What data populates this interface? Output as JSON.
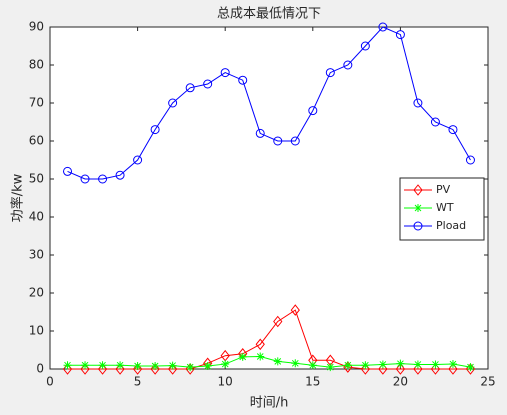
{
  "chart_data": {
    "type": "line",
    "title": "总成本最低情况下",
    "xlabel": "时间/h",
    "ylabel": "功率/kw",
    "x": [
      1,
      2,
      3,
      4,
      5,
      6,
      7,
      8,
      9,
      10,
      11,
      12,
      13,
      14,
      15,
      16,
      17,
      18,
      19,
      20,
      21,
      22,
      23,
      24
    ],
    "series": [
      {
        "name": "PV",
        "color": "#ff0000",
        "marker": "diamond",
        "values": [
          0,
          0,
          0,
          0,
          0,
          0,
          0,
          0,
          1.5,
          3.5,
          4,
          6.5,
          12.5,
          15.5,
          2.3,
          2.3,
          0.5,
          0,
          0,
          0,
          0,
          0,
          0,
          0
        ]
      },
      {
        "name": "WT",
        "color": "#00ff00",
        "marker": "asterisk",
        "values": [
          1,
          1,
          1,
          1,
          0.8,
          0.8,
          0.9,
          0.5,
          0.8,
          1.3,
          3.2,
          3.3,
          2,
          1.5,
          1,
          0.5,
          1,
          1,
          1.2,
          1.4,
          1.2,
          1.2,
          1.3,
          0.5
        ]
      },
      {
        "name": "Pload",
        "color": "#0000ff",
        "marker": "circle",
        "values": [
          52,
          50,
          50,
          51,
          55,
          63,
          70,
          74,
          75,
          78,
          76,
          62,
          60,
          60,
          68,
          78,
          80,
          85,
          90,
          88,
          70,
          65,
          63,
          55
        ]
      }
    ],
    "xlim": [
      0,
      25
    ],
    "xticks": [
      0,
      5,
      10,
      15,
      20,
      25
    ],
    "ylim": [
      0,
      90
    ],
    "yticks": [
      0,
      10,
      20,
      30,
      40,
      50,
      60,
      70,
      80,
      90
    ],
    "grid": false,
    "legend": "east"
  }
}
